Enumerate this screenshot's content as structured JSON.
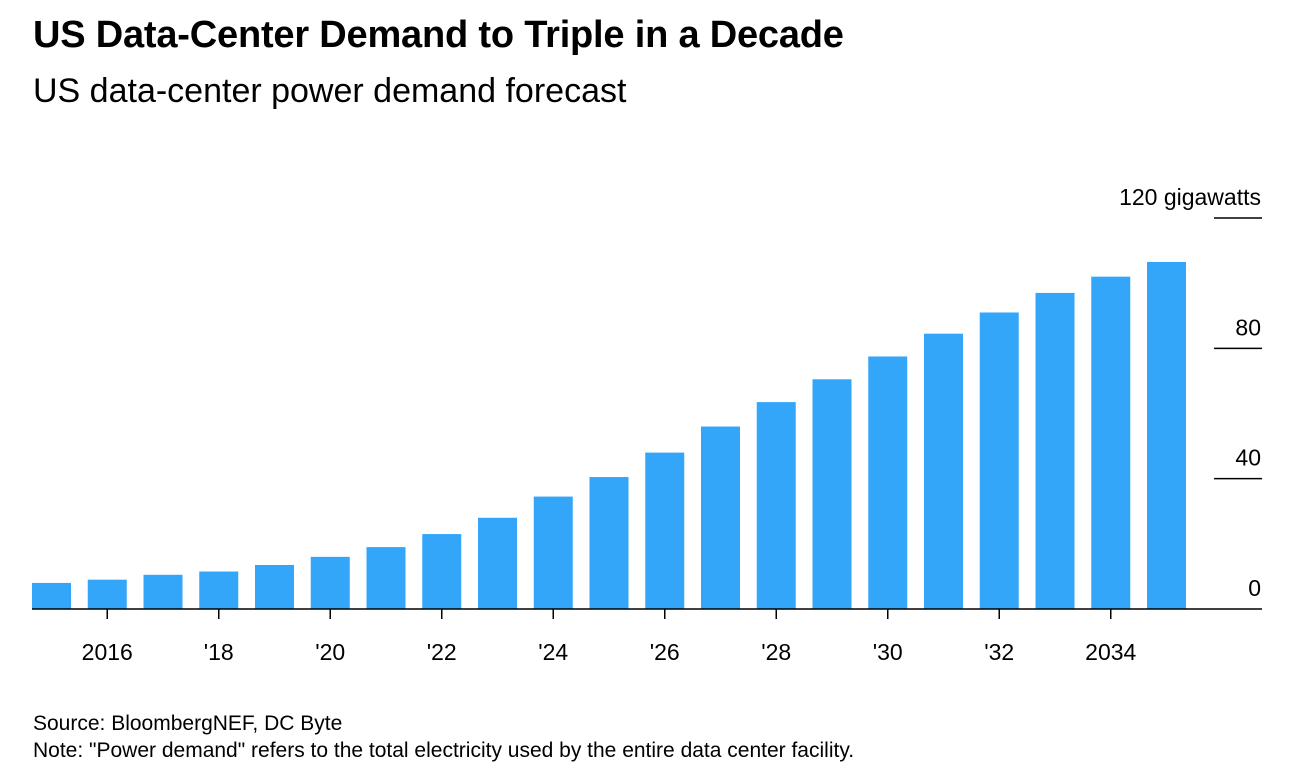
{
  "header": {
    "title": "US Data-Center Demand to Triple in a Decade",
    "subtitle": "US data-center power demand forecast"
  },
  "footer": {
    "source": "Source: BloombergNEF, DC Byte",
    "note": "Note: \"Power demand\" refers to the total electricity used by the entire data center facility."
  },
  "colors": {
    "bar": "#33a6fa",
    "axis": "#000000"
  },
  "chart_data": {
    "type": "bar",
    "title": "US Data-Center Demand to Triple in a Decade",
    "subtitle": "US data-center power demand forecast",
    "xlabel": "",
    "ylabel": "gigawatts",
    "unit": "gigawatts",
    "ylim": [
      0,
      120
    ],
    "yticks": [
      0,
      40,
      80,
      120
    ],
    "ytick_labels": [
      "0",
      "40",
      "80",
      "120 gigawatts"
    ],
    "grid": false,
    "legend": "none",
    "categories": [
      "2015",
      "2016",
      "2017",
      "2018",
      "2019",
      "2020",
      "2021",
      "2022",
      "2023",
      "2024",
      "2025",
      "2026",
      "2027",
      "2028",
      "2029",
      "2030",
      "2031",
      "2032",
      "2033",
      "2034",
      "2035"
    ],
    "values": [
      8,
      9,
      10.5,
      11.5,
      13.5,
      16,
      19,
      23,
      28,
      34.5,
      40.5,
      48,
      56,
      63.5,
      70.5,
      77.5,
      84.5,
      91,
      97,
      102,
      106.5
    ],
    "xtick_labels": [
      {
        "category": "2016",
        "label": "2016"
      },
      {
        "category": "2018",
        "label": "'18"
      },
      {
        "category": "2020",
        "label": "'20"
      },
      {
        "category": "2022",
        "label": "'22"
      },
      {
        "category": "2024",
        "label": "'24"
      },
      {
        "category": "2026",
        "label": "'26"
      },
      {
        "category": "2028",
        "label": "'28"
      },
      {
        "category": "2030",
        "label": "'30"
      },
      {
        "category": "2032",
        "label": "'32"
      },
      {
        "category": "2034",
        "label": "2034"
      }
    ]
  }
}
